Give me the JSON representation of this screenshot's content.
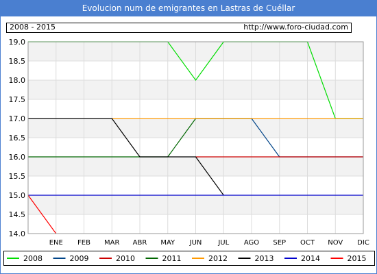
{
  "header": {
    "title": "Evolucion num de emigrantes en Lastras de Cuéllar"
  },
  "info": {
    "range": "2008 - 2015",
    "url": "http://www.foro-ciudad.com"
  },
  "chart_data": {
    "type": "line",
    "title": "Evolucion num de emigrantes en Lastras de Cuéllar",
    "xlabel": "",
    "ylabel": "",
    "categories": [
      "",
      "ENE",
      "FEB",
      "MAR",
      "ABR",
      "MAY",
      "JUN",
      "JUL",
      "AGO",
      "SEP",
      "OCT",
      "NOV",
      "DIC"
    ],
    "ylim": [
      14.0,
      19.0
    ],
    "yticks": [
      "14.0",
      "14.5",
      "15.0",
      "15.5",
      "16.0",
      "16.5",
      "17.0",
      "17.5",
      "18.0",
      "18.5",
      "19.0"
    ],
    "grid": true,
    "legend_position": "bottom",
    "series": [
      {
        "name": "2008",
        "color": "#00dd00",
        "values": [
          19,
          19,
          19,
          19,
          19,
          19,
          18,
          19,
          19,
          19,
          19,
          17,
          17
        ]
      },
      {
        "name": "2009",
        "color": "#004488",
        "values": [
          null,
          null,
          null,
          null,
          null,
          null,
          null,
          null,
          17,
          16,
          16,
          16,
          16
        ]
      },
      {
        "name": "2010",
        "color": "#cc0000",
        "values": [
          null,
          null,
          null,
          null,
          null,
          null,
          16,
          16,
          16,
          16,
          16,
          16,
          16
        ]
      },
      {
        "name": "2011",
        "color": "#006600",
        "values": [
          16,
          16,
          16,
          16,
          16,
          16,
          17,
          17,
          17,
          null,
          null,
          null,
          null
        ]
      },
      {
        "name": "2012",
        "color": "#ff9900",
        "values": [
          null,
          null,
          null,
          17,
          17,
          17,
          17,
          17,
          17,
          17,
          17,
          17,
          17
        ]
      },
      {
        "name": "2013",
        "color": "#000000",
        "values": [
          17,
          17,
          17,
          17,
          16,
          16,
          16,
          15,
          null,
          null,
          null,
          null,
          null
        ]
      },
      {
        "name": "2014",
        "color": "#0000cc",
        "values": [
          15,
          15,
          15,
          15,
          15,
          15,
          15,
          15,
          15,
          15,
          15,
          15,
          15
        ]
      },
      {
        "name": "2015",
        "color": "#ff0000",
        "values": [
          15,
          14,
          null,
          null,
          null,
          null,
          null,
          null,
          null,
          null,
          null,
          null,
          null
        ]
      }
    ]
  }
}
